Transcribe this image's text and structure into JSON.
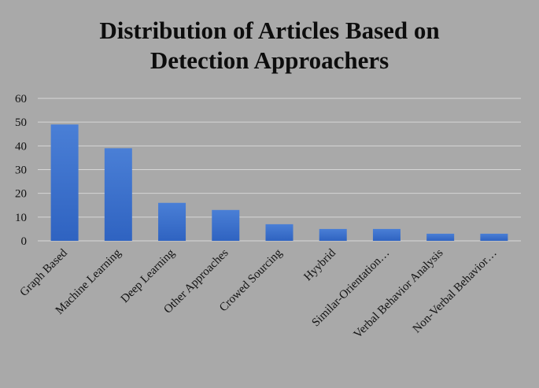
{
  "chart_data": {
    "type": "bar",
    "title_lines": [
      "Distribution of Articles Based on",
      "Detection Approachers"
    ],
    "categories": [
      "Graph Based",
      "Machine Learning",
      "Deep Learning",
      "Other Approaches",
      "Crowed Sourcing",
      "Hyybrid",
      "Similar-Orientation…",
      "Verbal Behavior Analysis",
      "Non-Verbal Behavior…"
    ],
    "values": [
      49,
      39,
      16,
      13,
      7,
      5,
      5,
      3,
      3
    ],
    "ylim": [
      0,
      60
    ],
    "yticks": [
      "0",
      "10",
      "20",
      "30",
      "40",
      "50",
      "60"
    ],
    "grid": true,
    "legend": "none",
    "colors": {
      "background": "#a9a9a9",
      "bar_top": "#4a7fd6",
      "bar_bottom": "#2f63c1",
      "grid": "#d6d6d6"
    }
  }
}
